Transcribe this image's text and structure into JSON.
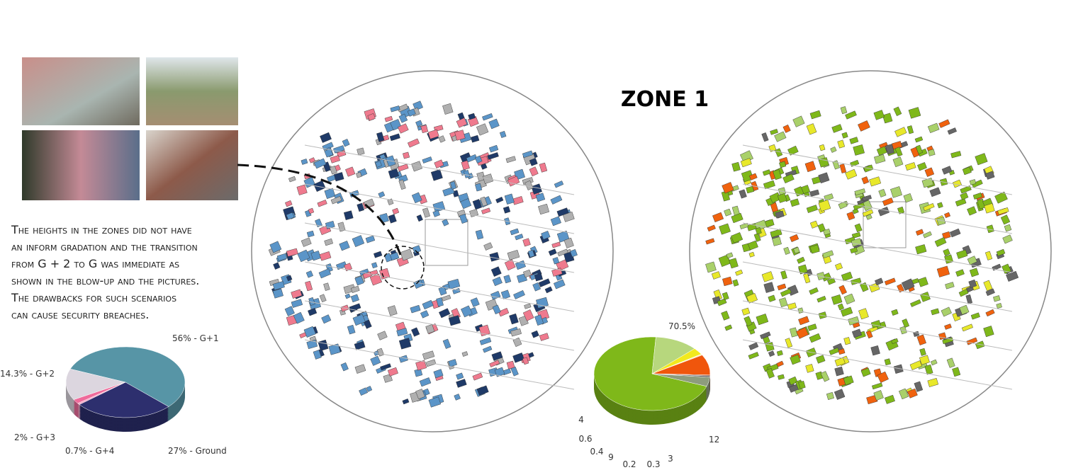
{
  "title": "ZONE 1",
  "description": [
    "The heights in the zones did not have",
    "an inform gradation and the transition",
    "from G + 2 to G was immediate as",
    "shown in the blow-up and the pictures.",
    " The drawbacks for such scenarios",
    "can cause security breaches."
  ],
  "chart_data": [
    {
      "type": "pie",
      "categories": [
        "G+1",
        "Ground",
        "G+4",
        "G+3",
        "G+2"
      ],
      "values": [
        56,
        27,
        0.7,
        2,
        14.3
      ],
      "value_labels": [
        "56% - G+1",
        "27% - Ground",
        "0.7% - G+4",
        "2% - G+3",
        "14.3% - G+2"
      ],
      "colors": [
        "#5795a6",
        "#2d2f6e",
        "#f4a9c8",
        "#ef6b9b",
        "#dcd6df"
      ]
    },
    {
      "type": "pie",
      "values": [
        70.5,
        12,
        3,
        0.3,
        0.2,
        9,
        0.4,
        0.6,
        4
      ],
      "value_labels": [
        "70.5%",
        "12",
        "3",
        "0.3",
        "0.2",
        "9",
        "0.4",
        "0.6",
        "4"
      ],
      "colors": [
        "#7fb81a",
        "#b7d77d",
        "#f2ea1e",
        "#f7f39a",
        "#f49a2a",
        "#f0560c",
        "#8c3a1c",
        "#555555",
        "#8d9c7d"
      ]
    }
  ]
}
